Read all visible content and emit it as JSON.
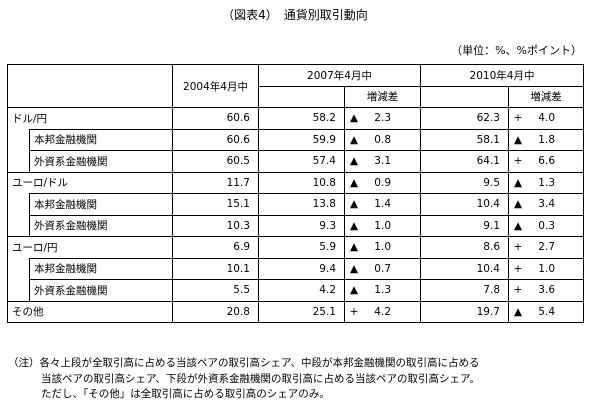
{
  "title": "（図表4）　通貨別取引動向",
  "unit": "（単位：%、%ポイント）",
  "headers": {
    "col2004": "2004年4月中",
    "col2007": "2007年4月中",
    "col2010": "2010年4月中",
    "diff": "増減差"
  },
  "rows": [
    {
      "label": "ドル/円",
      "level": 0,
      "v2004": "60.6",
      "v2007": "58.2",
      "d2007_sign": "▲",
      "d2007": "2.3",
      "v2010": "62.3",
      "d2010_sign": "+",
      "d2010": "4.0"
    },
    {
      "label": "本邦金融機関",
      "level": 1,
      "v2004": "60.6",
      "v2007": "59.9",
      "d2007_sign": "▲",
      "d2007": "0.8",
      "v2010": "58.1",
      "d2010_sign": "▲",
      "d2010": "1.8"
    },
    {
      "label": "外資系金融機関",
      "level": 1,
      "v2004": "60.5",
      "v2007": "57.4",
      "d2007_sign": "▲",
      "d2007": "3.1",
      "v2010": "64.1",
      "d2010_sign": "+",
      "d2010": "6.6"
    },
    {
      "label": "ユーロ/ドル",
      "level": 0,
      "v2004": "11.7",
      "v2007": "10.8",
      "d2007_sign": "▲",
      "d2007": "0.9",
      "v2010": "9.5",
      "d2010_sign": "▲",
      "d2010": "1.3"
    },
    {
      "label": "本邦金融機関",
      "level": 1,
      "v2004": "15.1",
      "v2007": "13.8",
      "d2007_sign": "▲",
      "d2007": "1.4",
      "v2010": "10.4",
      "d2010_sign": "▲",
      "d2010": "3.4"
    },
    {
      "label": "外資系金融機関",
      "level": 1,
      "v2004": "10.3",
      "v2007": "9.3",
      "d2007_sign": "▲",
      "d2007": "1.0",
      "v2010": "9.1",
      "d2010_sign": "▲",
      "d2010": "0.3"
    },
    {
      "label": "ユーロ/円",
      "level": 0,
      "v2004": "6.9",
      "v2007": "5.9",
      "d2007_sign": "▲",
      "d2007": "1.0",
      "v2010": "8.6",
      "d2010_sign": "+",
      "d2010": "2.7"
    },
    {
      "label": "本邦金融機関",
      "level": 1,
      "v2004": "10.1",
      "v2007": "9.4",
      "d2007_sign": "▲",
      "d2007": "0.7",
      "v2010": "10.4",
      "d2010_sign": "+",
      "d2010": "1.0"
    },
    {
      "label": "外資系金融機関",
      "level": 1,
      "v2004": "5.5",
      "v2007": "4.2",
      "d2007_sign": "▲",
      "d2007": "1.3",
      "v2010": "7.8",
      "d2010_sign": "+",
      "d2010": "3.6"
    },
    {
      "label": "その他",
      "level": 0,
      "v2004": "20.8",
      "v2007": "25.1",
      "d2007_sign": "+",
      "d2007": "4.2",
      "v2010": "19.7",
      "d2010_sign": "▲",
      "d2010": "5.4"
    }
  ],
  "notes": [
    "（注）各々上段が全取引高に占める当該ペアの取引高シェア、中段が本邦金融機関の取引高に占める",
    "当該ペアの取引高シェア、下段が外資系金融機関の取引高に占める当該ペアの取引高シェア。",
    "ただし、「その他」は全取引高に占める取引高のシェアのみ。"
  ]
}
